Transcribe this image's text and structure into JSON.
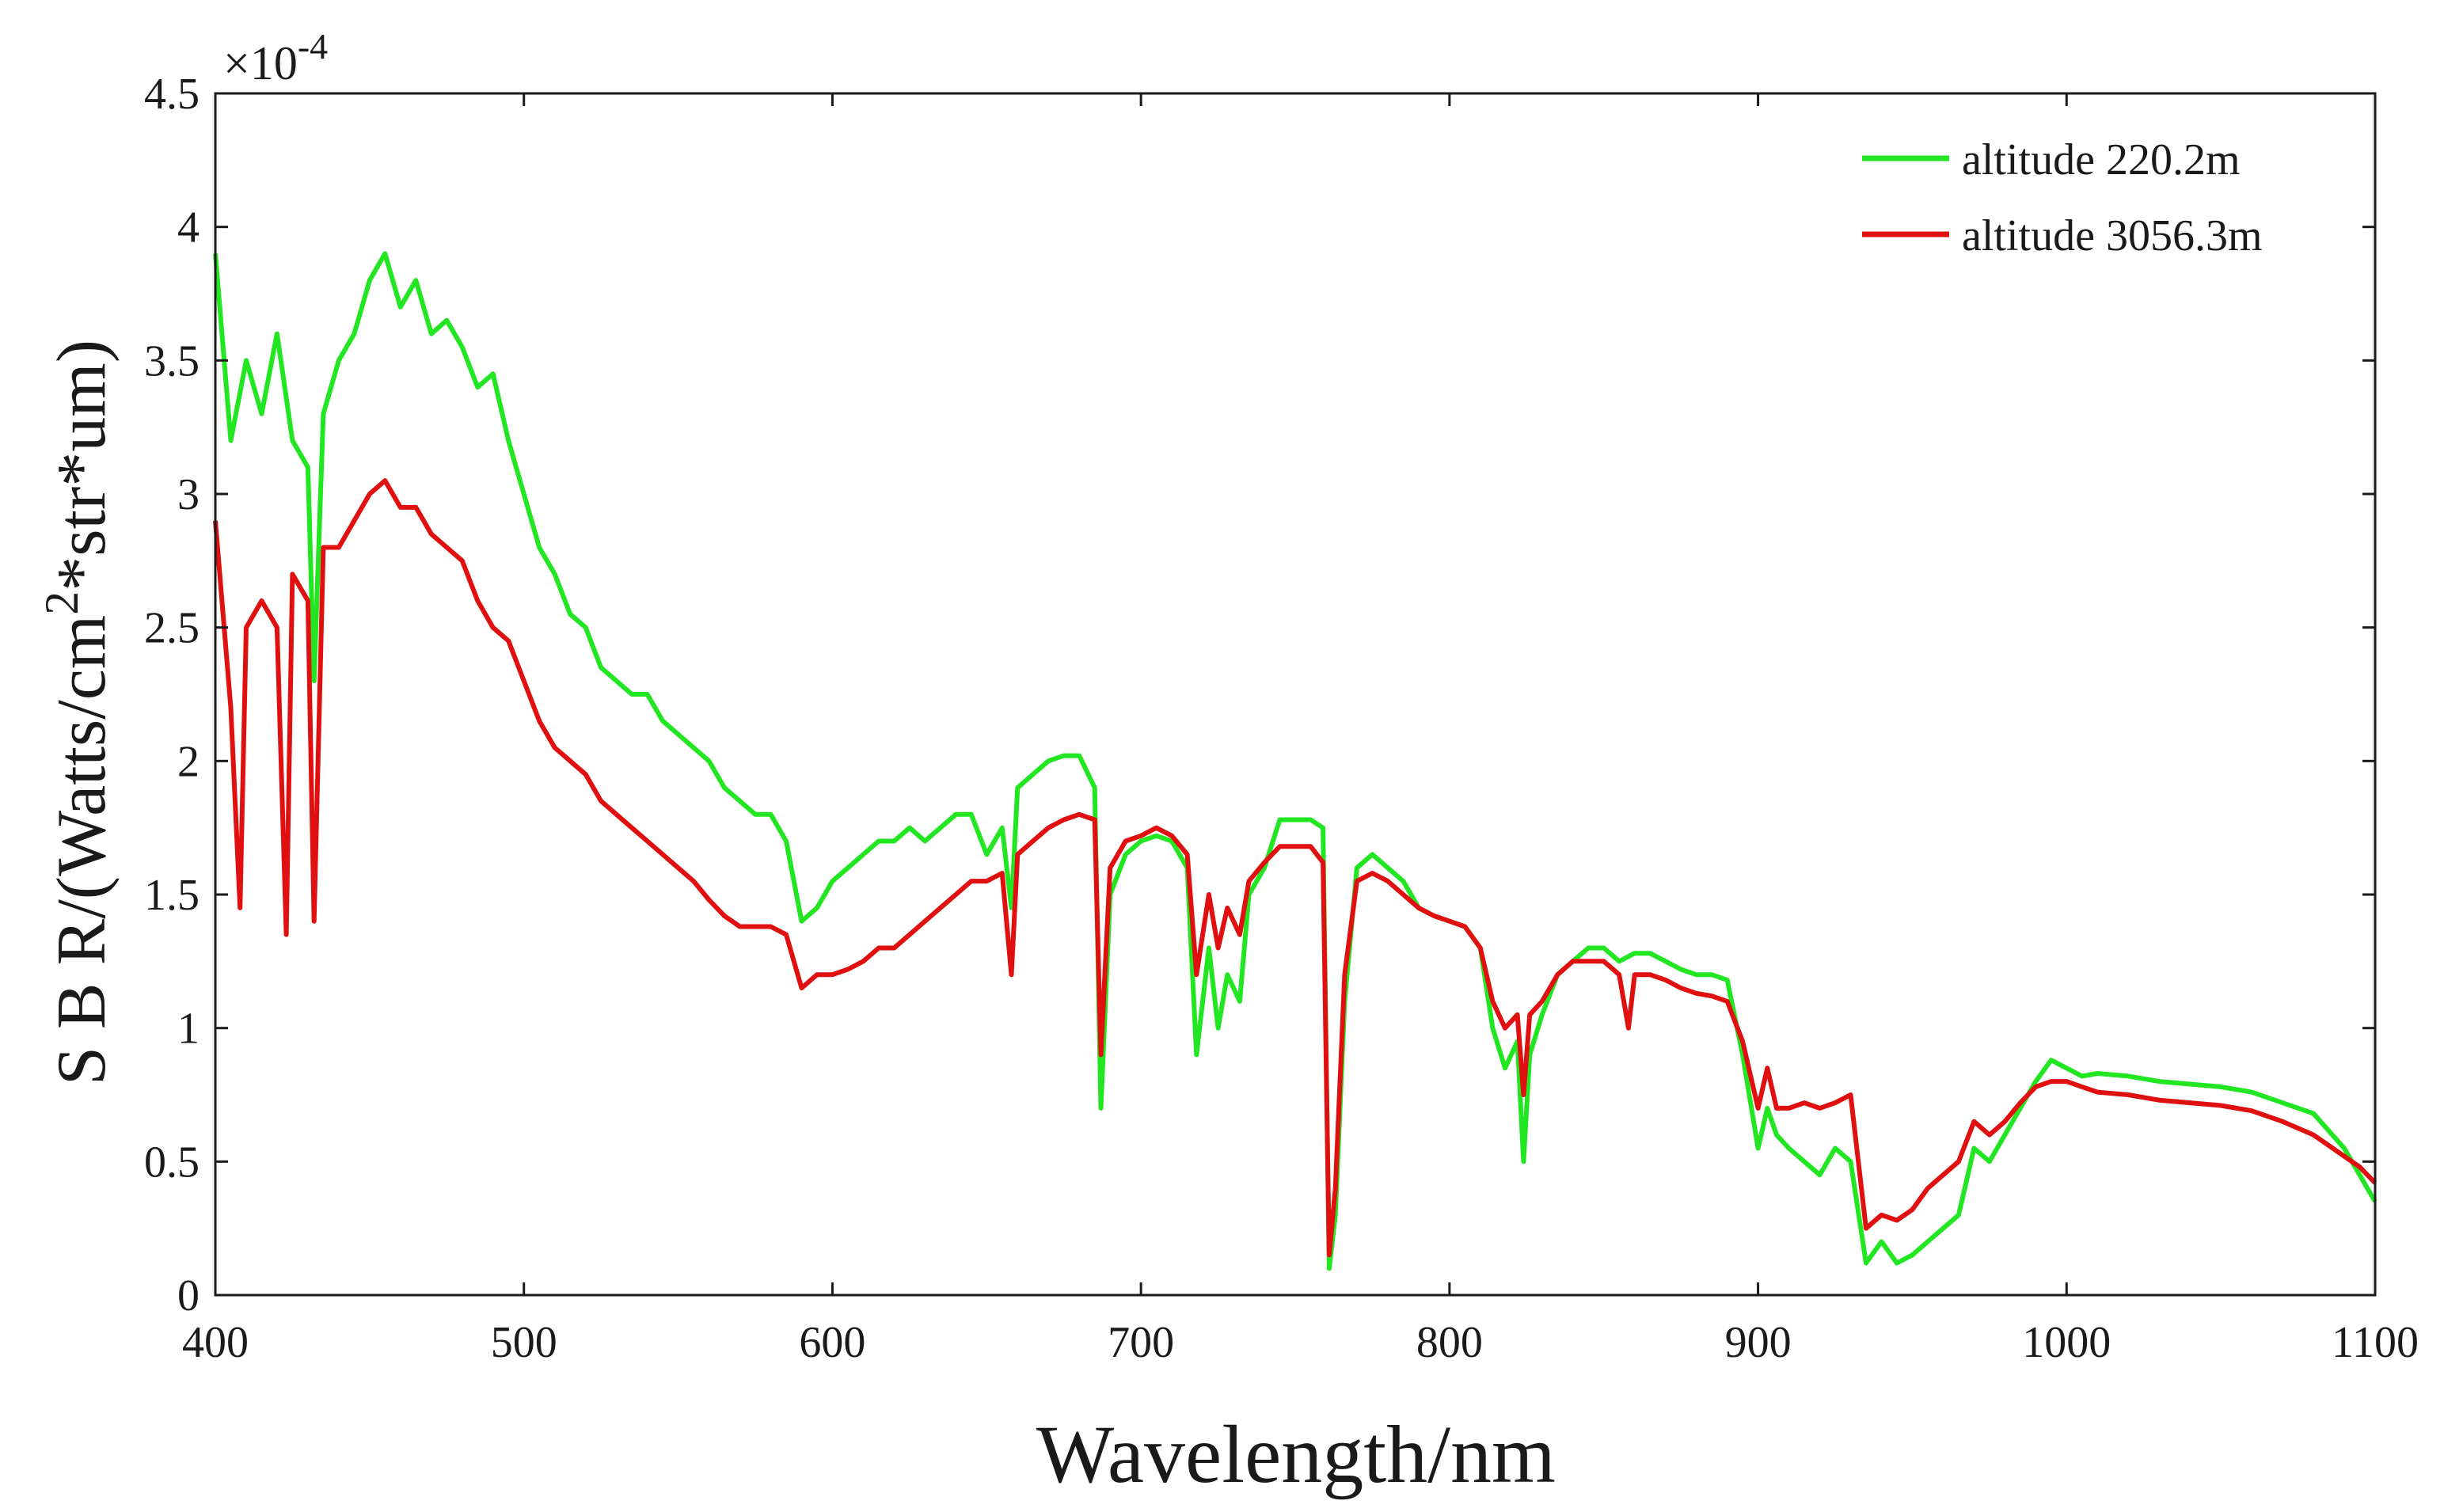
{
  "chart_data": {
    "type": "line",
    "xlabel": "Wavelength/nm",
    "ylabel_main": "S B R/(Watts/cm",
    "ylabel_sup": "2",
    "ylabel_rest": "*str*um)",
    "exponent_base": "×10",
    "exponent_power": "-4",
    "xlim": [
      400,
      1100
    ],
    "ylim": [
      0,
      4.5
    ],
    "x_ticks": [
      400,
      500,
      600,
      700,
      800,
      900,
      1000,
      1100
    ],
    "x_tick_labels": [
      "400",
      "500",
      "600",
      "700",
      "800",
      "900",
      "1000",
      "1100"
    ],
    "y_ticks": [
      0,
      0.5,
      1,
      1.5,
      2,
      2.5,
      3,
      3.5,
      4,
      4.5
    ],
    "y_tick_labels": [
      "0",
      "0.5",
      "1",
      "1.5",
      "2",
      "2.5",
      "3",
      "3.5",
      "4",
      "4.5"
    ],
    "legend_position": "top-right",
    "grid": false,
    "series": [
      {
        "name": "altitude 220.2m",
        "color": "#22e622",
        "points": [
          [
            400,
            3.9
          ],
          [
            405,
            3.2
          ],
          [
            410,
            3.5
          ],
          [
            415,
            3.3
          ],
          [
            420,
            3.6
          ],
          [
            425,
            3.2
          ],
          [
            430,
            3.1
          ],
          [
            432,
            2.3
          ],
          [
            435,
            3.3
          ],
          [
            440,
            3.5
          ],
          [
            445,
            3.6
          ],
          [
            450,
            3.8
          ],
          [
            455,
            3.9
          ],
          [
            460,
            3.7
          ],
          [
            465,
            3.8
          ],
          [
            470,
            3.6
          ],
          [
            475,
            3.65
          ],
          [
            480,
            3.55
          ],
          [
            485,
            3.4
          ],
          [
            490,
            3.45
          ],
          [
            495,
            3.2
          ],
          [
            500,
            3.0
          ],
          [
            505,
            2.8
          ],
          [
            510,
            2.7
          ],
          [
            515,
            2.55
          ],
          [
            520,
            2.5
          ],
          [
            525,
            2.35
          ],
          [
            530,
            2.3
          ],
          [
            535,
            2.25
          ],
          [
            540,
            2.25
          ],
          [
            545,
            2.15
          ],
          [
            550,
            2.1
          ],
          [
            555,
            2.05
          ],
          [
            560,
            2.0
          ],
          [
            565,
            1.9
          ],
          [
            570,
            1.85
          ],
          [
            575,
            1.8
          ],
          [
            580,
            1.8
          ],
          [
            585,
            1.7
          ],
          [
            590,
            1.4
          ],
          [
            595,
            1.45
          ],
          [
            600,
            1.55
          ],
          [
            605,
            1.6
          ],
          [
            610,
            1.65
          ],
          [
            615,
            1.7
          ],
          [
            620,
            1.7
          ],
          [
            625,
            1.75
          ],
          [
            630,
            1.7
          ],
          [
            635,
            1.75
          ],
          [
            640,
            1.8
          ],
          [
            645,
            1.8
          ],
          [
            650,
            1.65
          ],
          [
            655,
            1.75
          ],
          [
            658,
            1.45
          ],
          [
            660,
            1.9
          ],
          [
            665,
            1.95
          ],
          [
            670,
            2.0
          ],
          [
            675,
            2.02
          ],
          [
            680,
            2.02
          ],
          [
            685,
            1.9
          ],
          [
            687,
            0.7
          ],
          [
            690,
            1.5
          ],
          [
            695,
            1.65
          ],
          [
            700,
            1.7
          ],
          [
            705,
            1.72
          ],
          [
            710,
            1.7
          ],
          [
            715,
            1.6
          ],
          [
            718,
            0.9
          ],
          [
            722,
            1.3
          ],
          [
            725,
            1.0
          ],
          [
            728,
            1.2
          ],
          [
            732,
            1.1
          ],
          [
            735,
            1.5
          ],
          [
            740,
            1.6
          ],
          [
            745,
            1.78
          ],
          [
            750,
            1.78
          ],
          [
            755,
            1.78
          ],
          [
            759,
            1.75
          ],
          [
            761,
            0.1
          ],
          [
            763,
            0.3
          ],
          [
            766,
            1.1
          ],
          [
            770,
            1.6
          ],
          [
            775,
            1.65
          ],
          [
            780,
            1.6
          ],
          [
            785,
            1.55
          ],
          [
            790,
            1.45
          ],
          [
            795,
            1.42
          ],
          [
            800,
            1.4
          ],
          [
            805,
            1.38
          ],
          [
            810,
            1.3
          ],
          [
            814,
            1.0
          ],
          [
            818,
            0.85
          ],
          [
            822,
            0.95
          ],
          [
            824,
            0.5
          ],
          [
            826,
            0.9
          ],
          [
            830,
            1.05
          ],
          [
            835,
            1.2
          ],
          [
            840,
            1.25
          ],
          [
            845,
            1.3
          ],
          [
            850,
            1.3
          ],
          [
            855,
            1.25
          ],
          [
            860,
            1.28
          ],
          [
            865,
            1.28
          ],
          [
            870,
            1.25
          ],
          [
            875,
            1.22
          ],
          [
            880,
            1.2
          ],
          [
            885,
            1.2
          ],
          [
            890,
            1.18
          ],
          [
            895,
            0.9
          ],
          [
            900,
            0.55
          ],
          [
            903,
            0.7
          ],
          [
            906,
            0.6
          ],
          [
            910,
            0.55
          ],
          [
            915,
            0.5
          ],
          [
            920,
            0.45
          ],
          [
            925,
            0.55
          ],
          [
            930,
            0.5
          ],
          [
            935,
            0.12
          ],
          [
            940,
            0.2
          ],
          [
            945,
            0.12
          ],
          [
            950,
            0.15
          ],
          [
            955,
            0.2
          ],
          [
            960,
            0.25
          ],
          [
            965,
            0.3
          ],
          [
            970,
            0.55
          ],
          [
            975,
            0.5
          ],
          [
            980,
            0.6
          ],
          [
            985,
            0.7
          ],
          [
            990,
            0.8
          ],
          [
            995,
            0.88
          ],
          [
            1000,
            0.85
          ],
          [
            1005,
            0.82
          ],
          [
            1010,
            0.83
          ],
          [
            1020,
            0.82
          ],
          [
            1030,
            0.8
          ],
          [
            1040,
            0.79
          ],
          [
            1050,
            0.78
          ],
          [
            1060,
            0.76
          ],
          [
            1070,
            0.72
          ],
          [
            1080,
            0.68
          ],
          [
            1090,
            0.55
          ],
          [
            1095,
            0.45
          ],
          [
            1100,
            0.35
          ]
        ]
      },
      {
        "name": "altitude 3056.3m",
        "color": "#e01010",
        "points": [
          [
            400,
            2.9
          ],
          [
            405,
            2.2
          ],
          [
            408,
            1.45
          ],
          [
            410,
            2.5
          ],
          [
            415,
            2.6
          ],
          [
            420,
            2.5
          ],
          [
            423,
            1.35
          ],
          [
            425,
            2.7
          ],
          [
            430,
            2.6
          ],
          [
            432,
            1.4
          ],
          [
            435,
            2.8
          ],
          [
            440,
            2.8
          ],
          [
            445,
            2.9
          ],
          [
            450,
            3.0
          ],
          [
            455,
            3.05
          ],
          [
            460,
            2.95
          ],
          [
            465,
            2.95
          ],
          [
            470,
            2.85
          ],
          [
            475,
            2.8
          ],
          [
            480,
            2.75
          ],
          [
            485,
            2.6
          ],
          [
            490,
            2.5
          ],
          [
            495,
            2.45
          ],
          [
            500,
            2.3
          ],
          [
            505,
            2.15
          ],
          [
            510,
            2.05
          ],
          [
            515,
            2.0
          ],
          [
            520,
            1.95
          ],
          [
            525,
            1.85
          ],
          [
            530,
            1.8
          ],
          [
            535,
            1.75
          ],
          [
            540,
            1.7
          ],
          [
            545,
            1.65
          ],
          [
            550,
            1.6
          ],
          [
            555,
            1.55
          ],
          [
            560,
            1.48
          ],
          [
            565,
            1.42
          ],
          [
            570,
            1.38
          ],
          [
            575,
            1.38
          ],
          [
            580,
            1.38
          ],
          [
            585,
            1.35
          ],
          [
            590,
            1.15
          ],
          [
            595,
            1.2
          ],
          [
            600,
            1.2
          ],
          [
            605,
            1.22
          ],
          [
            610,
            1.25
          ],
          [
            615,
            1.3
          ],
          [
            620,
            1.3
          ],
          [
            625,
            1.35
          ],
          [
            630,
            1.4
          ],
          [
            635,
            1.45
          ],
          [
            640,
            1.5
          ],
          [
            645,
            1.55
          ],
          [
            650,
            1.55
          ],
          [
            655,
            1.58
          ],
          [
            658,
            1.2
          ],
          [
            660,
            1.65
          ],
          [
            665,
            1.7
          ],
          [
            670,
            1.75
          ],
          [
            675,
            1.78
          ],
          [
            680,
            1.8
          ],
          [
            685,
            1.78
          ],
          [
            687,
            0.9
          ],
          [
            690,
            1.6
          ],
          [
            695,
            1.7
          ],
          [
            700,
            1.72
          ],
          [
            705,
            1.75
          ],
          [
            710,
            1.72
          ],
          [
            715,
            1.65
          ],
          [
            718,
            1.2
          ],
          [
            722,
            1.5
          ],
          [
            725,
            1.3
          ],
          [
            728,
            1.45
          ],
          [
            732,
            1.35
          ],
          [
            735,
            1.55
          ],
          [
            740,
            1.62
          ],
          [
            745,
            1.68
          ],
          [
            750,
            1.68
          ],
          [
            755,
            1.68
          ],
          [
            759,
            1.62
          ],
          [
            761,
            0.15
          ],
          [
            763,
            0.4
          ],
          [
            766,
            1.2
          ],
          [
            770,
            1.55
          ],
          [
            775,
            1.58
          ],
          [
            780,
            1.55
          ],
          [
            785,
            1.5
          ],
          [
            790,
            1.45
          ],
          [
            795,
            1.42
          ],
          [
            800,
            1.4
          ],
          [
            805,
            1.38
          ],
          [
            810,
            1.3
          ],
          [
            814,
            1.1
          ],
          [
            818,
            1.0
          ],
          [
            822,
            1.05
          ],
          [
            824,
            0.75
          ],
          [
            826,
            1.05
          ],
          [
            830,
            1.1
          ],
          [
            835,
            1.2
          ],
          [
            840,
            1.25
          ],
          [
            845,
            1.25
          ],
          [
            850,
            1.25
          ],
          [
            855,
            1.2
          ],
          [
            858,
            1.0
          ],
          [
            860,
            1.2
          ],
          [
            865,
            1.2
          ],
          [
            870,
            1.18
          ],
          [
            875,
            1.15
          ],
          [
            880,
            1.13
          ],
          [
            885,
            1.12
          ],
          [
            890,
            1.1
          ],
          [
            895,
            0.95
          ],
          [
            900,
            0.7
          ],
          [
            903,
            0.85
          ],
          [
            906,
            0.7
          ],
          [
            910,
            0.7
          ],
          [
            915,
            0.72
          ],
          [
            920,
            0.7
          ],
          [
            925,
            0.72
          ],
          [
            930,
            0.75
          ],
          [
            935,
            0.25
          ],
          [
            940,
            0.3
          ],
          [
            945,
            0.28
          ],
          [
            950,
            0.32
          ],
          [
            955,
            0.4
          ],
          [
            960,
            0.45
          ],
          [
            965,
            0.5
          ],
          [
            970,
            0.65
          ],
          [
            975,
            0.6
          ],
          [
            980,
            0.65
          ],
          [
            985,
            0.72
          ],
          [
            990,
            0.78
          ],
          [
            995,
            0.8
          ],
          [
            1000,
            0.8
          ],
          [
            1005,
            0.78
          ],
          [
            1010,
            0.76
          ],
          [
            1020,
            0.75
          ],
          [
            1030,
            0.73
          ],
          [
            1040,
            0.72
          ],
          [
            1050,
            0.71
          ],
          [
            1060,
            0.69
          ],
          [
            1070,
            0.65
          ],
          [
            1080,
            0.6
          ],
          [
            1090,
            0.52
          ],
          [
            1095,
            0.48
          ],
          [
            1100,
            0.42
          ]
        ]
      }
    ]
  }
}
